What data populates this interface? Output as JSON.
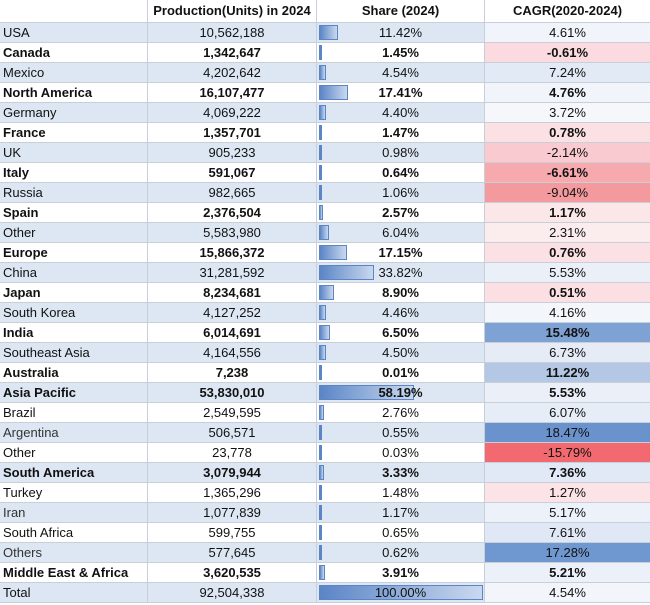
{
  "headers": [
    "",
    "Production(Units) in 2024",
    "Share (2024)",
    "CAGR(2020-2024)"
  ],
  "rows": [
    {
      "name": "USA",
      "production": "10,562,188",
      "share": "11.42%",
      "share_value": 11.42,
      "cagr": "4.61%",
      "cagr_color": "#f1f4fa",
      "bold": false
    },
    {
      "name": "Canada",
      "production": "1,342,647",
      "share": "1.45%",
      "share_value": 1.45,
      "cagr": "-0.61%",
      "cagr_color": "#fbdbdf",
      "bold": true
    },
    {
      "name": "Mexico",
      "production": "4,202,642",
      "share": "4.54%",
      "share_value": 4.54,
      "cagr": "7.24%",
      "cagr_color": "#e2eaf5",
      "bold": false
    },
    {
      "name": "North America",
      "production": "16,107,477",
      "share": "17.41%",
      "share_value": 17.41,
      "cagr": "4.76%",
      "cagr_color": "#f1f4fa",
      "bold": true
    },
    {
      "name": "Germany",
      "production": "4,069,222",
      "share": "4.40%",
      "share_value": 4.4,
      "cagr": "3.72%",
      "cagr_color": "#f6f7fb",
      "bold": false
    },
    {
      "name": "France",
      "production": "1,357,701",
      "share": "1.47%",
      "share_value": 1.47,
      "cagr": "0.78%",
      "cagr_color": "#fbe1e4",
      "bold": true
    },
    {
      "name": "UK",
      "production": "905,233",
      "share": "0.98%",
      "share_value": 0.98,
      "cagr": "-2.14%",
      "cagr_color": "#f9cacf",
      "bold": false
    },
    {
      "name": "Italy",
      "production": "591,067",
      "share": "0.64%",
      "share_value": 0.64,
      "cagr": "-6.61%",
      "cagr_color": "#f6aaae",
      "bold": true
    },
    {
      "name": "Russia",
      "production": "982,665",
      "share": "1.06%",
      "share_value": 1.06,
      "cagr": "-9.04%",
      "cagr_color": "#f49a9e",
      "bold": false
    },
    {
      "name": "Spain",
      "production": "2,376,504",
      "share": "2.57%",
      "share_value": 2.57,
      "cagr": "1.17%",
      "cagr_color": "#fbe6e8",
      "bold": true
    },
    {
      "name": "Other",
      "production": "5,583,980",
      "share": "6.04%",
      "share_value": 6.04,
      "cagr": "2.31%",
      "cagr_color": "#fbeced",
      "bold": false
    },
    {
      "name": "Europe",
      "production": "15,866,372",
      "share": "17.15%",
      "share_value": 17.15,
      "cagr": "0.76%",
      "cagr_color": "#fbe1e4",
      "bold": true
    },
    {
      "name": "China",
      "production": "31,281,592",
      "share": "33.82%",
      "share_value": 33.82,
      "cagr": "5.53%",
      "cagr_color": "#eaeff8",
      "bold": false
    },
    {
      "name": "Japan",
      "production": "8,234,681",
      "share": "8.90%",
      "share_value": 8.9,
      "cagr": "0.51%",
      "cagr_color": "#fbdfe2",
      "bold": true
    },
    {
      "name": "South Korea",
      "production": "4,127,252",
      "share": "4.46%",
      "share_value": 4.46,
      "cagr": "4.16%",
      "cagr_color": "#f3f6fa",
      "bold": false
    },
    {
      "name": "India",
      "production": "6,014,691",
      "share": "6.50%",
      "share_value": 6.5,
      "cagr": "15.48%",
      "cagr_color": "#7fa2d5",
      "bold": true
    },
    {
      "name": "Southeast Asia",
      "production": "4,164,556",
      "share": "4.50%",
      "share_value": 4.5,
      "cagr": "6.73%",
      "cagr_color": "#e5ecf6",
      "bold": false
    },
    {
      "name": "Australia",
      "production": "7,238",
      "share": "0.01%",
      "share_value": 0.01,
      "cagr": "11.22%",
      "cagr_color": "#b4c8e6",
      "bold": true
    },
    {
      "name": "Asia Pacific",
      "production": "53,830,010",
      "share": "58.19%",
      "share_value": 58.19,
      "cagr": "5.53%",
      "cagr_color": "#eaeff8",
      "bold": true
    },
    {
      "name": "Brazil",
      "production": "2,549,595",
      "share": "2.76%",
      "share_value": 2.76,
      "cagr": "6.07%",
      "cagr_color": "#e6edf7",
      "bold": false
    },
    {
      "name": "Argentina",
      "production": "506,571",
      "share": "0.55%",
      "share_value": 0.55,
      "cagr": "18.47%",
      "cagr_color": "#6a93cd",
      "bold": false,
      "light": true
    },
    {
      "name": "Other",
      "production": "23,778",
      "share": "0.03%",
      "share_value": 0.03,
      "cagr": "-15.79%",
      "cagr_color": "#f2696f",
      "bold": false
    },
    {
      "name": "South America",
      "production": "3,079,944",
      "share": "3.33%",
      "share_value": 3.33,
      "cagr": "7.36%",
      "cagr_color": "#e0e9f5",
      "bold": true
    },
    {
      "name": "Turkey",
      "production": "1,365,296",
      "share": "1.48%",
      "share_value": 1.48,
      "cagr": "1.27%",
      "cagr_color": "#fbe3e6",
      "bold": false
    },
    {
      "name": "Iran",
      "production": "1,077,839",
      "share": "1.17%",
      "share_value": 1.17,
      "cagr": "5.17%",
      "cagr_color": "#edf1f9",
      "bold": false,
      "light": true
    },
    {
      "name": "South Africa",
      "production": "599,755",
      "share": "0.65%",
      "share_value": 0.65,
      "cagr": "7.61%",
      "cagr_color": "#dfe8f4",
      "bold": false
    },
    {
      "name": "Others",
      "production": "577,645",
      "share": "0.62%",
      "share_value": 0.62,
      "cagr": "17.28%",
      "cagr_color": "#7098d0",
      "bold": false,
      "light": true
    },
    {
      "name": "Middle East & Africa",
      "production": "3,620,535",
      "share": "3.91%",
      "share_value": 3.91,
      "cagr": "5.21%",
      "cagr_color": "#ecf0f8",
      "bold": true
    },
    {
      "name": "Total",
      "production": "92,504,338",
      "share": "100.00%",
      "share_value": 100,
      "cagr": "4.54%",
      "cagr_color": "#f2f5fa",
      "bold": false
    }
  ]
}
